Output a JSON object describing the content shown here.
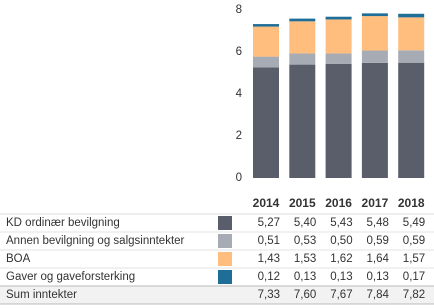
{
  "chart_data": {
    "type": "stacked-bar",
    "categories": [
      "2014",
      "2015",
      "2016",
      "2017",
      "2018"
    ],
    "ylim": [
      0,
      8
    ],
    "yticks": [
      0,
      2,
      4,
      6,
      8
    ],
    "series": [
      {
        "name": "KD ordinær bevilgning",
        "color": "#595e6a",
        "values": [
          5.27,
          5.4,
          5.43,
          5.48,
          5.49
        ],
        "value_labels": [
          "5,27",
          "5,40",
          "5,43",
          "5,48",
          "5,49"
        ]
      },
      {
        "name": "Annen bevilgning og salgsinntekter",
        "color": "#a7acb4",
        "values": [
          0.51,
          0.53,
          0.5,
          0.59,
          0.59
        ],
        "value_labels": [
          "0,51",
          "0,53",
          "0,50",
          "0,59",
          "0,59"
        ]
      },
      {
        "name": "BOA",
        "color": "#ffbe7d",
        "values": [
          1.43,
          1.53,
          1.62,
          1.64,
          1.57
        ],
        "value_labels": [
          "1,43",
          "1,53",
          "1,62",
          "1,64",
          "1,57"
        ]
      },
      {
        "name": "Gaver og gaveforsterking",
        "color": "#1f6e98",
        "values": [
          0.12,
          0.13,
          0.13,
          0.13,
          0.17
        ],
        "value_labels": [
          "0,12",
          "0,13",
          "0,13",
          "0,13",
          "0,17"
        ]
      }
    ],
    "total": {
      "name": "Sum inntekter",
      "values": [
        7.33,
        7.6,
        7.67,
        7.84,
        7.82
      ],
      "value_labels": [
        "7,33",
        "7,60",
        "7,67",
        "7,84",
        "7,82"
      ]
    }
  }
}
